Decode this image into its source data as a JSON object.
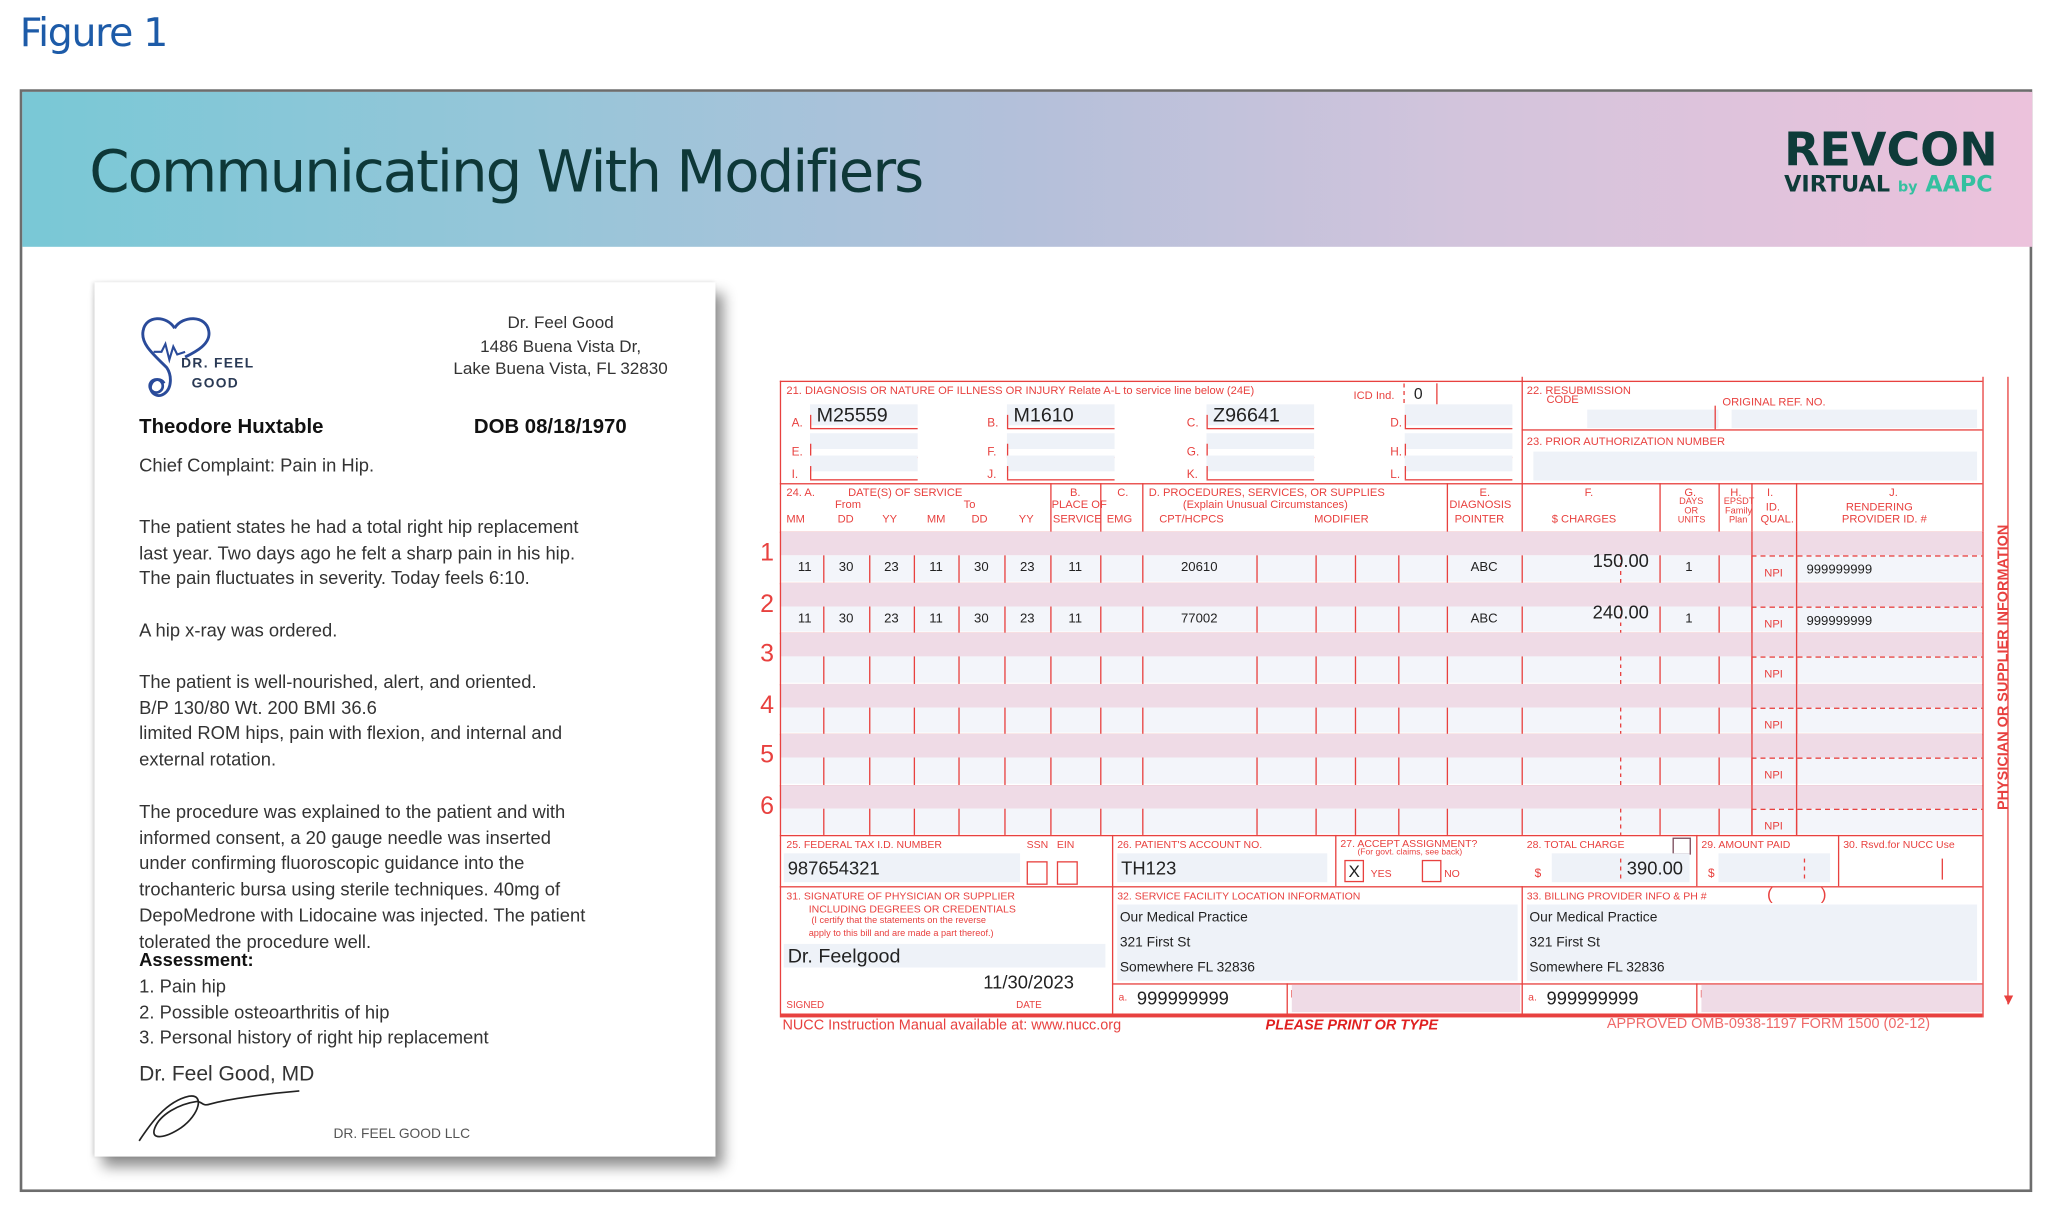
{
  "figure_label": "Figure 1",
  "banner": {
    "title": "Communicating With Modifiers",
    "logo": {
      "line1": "REVCON",
      "line2": "VIRTUAL",
      "by": "by",
      "brand": "AAPC"
    },
    "colors": {
      "left": "#79c8d6",
      "right": "#ecc2dc",
      "title": "#0e3838"
    }
  },
  "note": {
    "logo_text": [
      "DR. FEEL",
      "GOOD"
    ],
    "address": [
      "Dr. Feel Good",
      "1486 Buena Vista Dr,",
      "Lake Buena Vista, FL 32830"
    ],
    "patient_name": "Theodore Huxtable",
    "dob": "DOB  08/18/1970",
    "chief_complaint": "Chief Complaint:  Pain in Hip.",
    "para1": [
      "The patient states he had a total right hip replacement",
      "last year.  Two days ago he felt a sharp pain in his hip.",
      "The pain fluctuates in severity. Today feels 6:10."
    ],
    "para2": [
      "A hip x-ray was ordered."
    ],
    "para3": [
      "The patient is well-nourished, alert, and oriented.",
      "B/P 130/80 Wt. 200 BMI 36.6",
      "limited ROM  hips,  pain with flexion, and internal and",
      "external rotation."
    ],
    "para4": [
      "The procedure was explained to the patient and with",
      "informed consent, a 20 gauge needle was inserted",
      "under confirming fluoroscopic guidance into the",
      "trochanteric bursa using sterile techniques. 40mg of",
      "DepoMedrone with Lidocaine was injected.  The patient",
      "tolerated the procedure well."
    ],
    "assessment_heading": "Assessment:",
    "assessment": [
      "1. Pain hip",
      "2. Possible osteoarthritis of hip",
      "3. Personal history of right hip replacement"
    ],
    "signer": "Dr. Feel Good, MD",
    "footer": "DR. FEEL GOOD LLC"
  },
  "claim_form": {
    "color": "#e8413f",
    "box21": {
      "label": "21. DIAGNOSIS OR NATURE OF ILLNESS OR INJURY  Relate A-L to service line below (24E)",
      "icd_ind_label": "ICD Ind.",
      "icd_ind": "0",
      "letters": [
        "A.",
        "B.",
        "C.",
        "D.",
        "E.",
        "F.",
        "G.",
        "H.",
        "I.",
        "J.",
        "K.",
        "L."
      ],
      "codes": [
        "M25559",
        "M1610",
        "Z96641",
        "",
        "",
        "",
        "",
        "",
        "",
        "",
        "",
        ""
      ]
    },
    "box22": {
      "label": "22. RESUBMISSION",
      "label2": "CODE",
      "ref_label": "ORIGINAL REF. NO."
    },
    "box23": {
      "label": "23. PRIOR AUTHORIZATION NUMBER"
    },
    "box24_headers": {
      "a": "24.  A.",
      "dates": "DATE(S) OF SERVICE",
      "from": "From",
      "to": "To",
      "mm": "MM",
      "dd": "DD",
      "yy": "YY",
      "b": "B.",
      "b2": "PLACE OF",
      "b3": "SERVICE",
      "c": "C.",
      "c2": "EMG",
      "d": "D.  PROCEDURES, SERVICES, OR SUPPLIES",
      "d2": "(Explain Unusual Circumstances)",
      "d3": "CPT/HCPCS",
      "d4": "MODIFIER",
      "e": "E.",
      "e2": "DIAGNOSIS",
      "e3": "POINTER",
      "f": "F.",
      "f2": "$ CHARGES",
      "g": "G.",
      "g2": "DAYS",
      "g3": "OR",
      "g4": "UNITS",
      "h": "H.",
      "h2": "EPSDT",
      "h3": "Family",
      "h4": "Plan",
      "i": "I.",
      "i2": "ID.",
      "i3": "QUAL.",
      "j": "J.",
      "j2": "RENDERING",
      "j3": "PROVIDER ID. #"
    },
    "service_lines": [
      {
        "num": "1",
        "from_mm": "11",
        "from_dd": "30",
        "from_yy": "23",
        "to_mm": "11",
        "to_dd": "30",
        "to_yy": "23",
        "pos": "11",
        "emg": "",
        "cpt": "20610",
        "modifiers": [
          "",
          "",
          "",
          ""
        ],
        "pointer": "ABC",
        "charges": "150.00",
        "units": "1",
        "epsdt": "",
        "qual": "NPI",
        "provider_id": "999999999"
      },
      {
        "num": "2",
        "from_mm": "11",
        "from_dd": "30",
        "from_yy": "23",
        "to_mm": "11",
        "to_dd": "30",
        "to_yy": "23",
        "pos": "11",
        "emg": "",
        "cpt": "77002",
        "modifiers": [
          "",
          "",
          "",
          ""
        ],
        "pointer": "ABC",
        "charges": "240.00",
        "units": "1",
        "epsdt": "",
        "qual": "NPI",
        "provider_id": "999999999"
      },
      {
        "num": "3",
        "qual": "NPI"
      },
      {
        "num": "4",
        "qual": "NPI"
      },
      {
        "num": "5",
        "qual": "NPI"
      },
      {
        "num": "6",
        "qual": "NPI"
      }
    ],
    "side_label": "PHYSICIAN OR SUPPLIER INFORMATION",
    "box25": {
      "label": "25. FEDERAL TAX I.D. NUMBER",
      "ssn": "SSN",
      "ein": "EIN",
      "value": "987654321"
    },
    "box26": {
      "label": "26. PATIENT'S ACCOUNT NO.",
      "value": "TH123"
    },
    "box27": {
      "label": "27. ACCEPT ASSIGNMENT?",
      "sub": "(For govt. claims, see back)",
      "yes": "YES",
      "no": "NO",
      "yes_mark": "X"
    },
    "box28": {
      "label": "28. TOTAL CHARGE",
      "currency": "$",
      "value": "390.00"
    },
    "box29": {
      "label": "29. AMOUNT PAID",
      "currency": "$"
    },
    "box30": {
      "label": "30. Rsvd.for NUCC Use"
    },
    "box31": {
      "label": [
        "31. SIGNATURE OF PHYSICIAN OR SUPPLIER",
        "INCLUDING DEGREES OR CREDENTIALS",
        "(I certify that the statements on the reverse",
        "apply to this bill and are made a part thereof.)"
      ],
      "signature": "Dr. Feelgood",
      "date": "11/30/2023",
      "signed_label": "SIGNED",
      "date_label": "DATE"
    },
    "box32": {
      "label": "32. SERVICE FACILITY LOCATION INFORMATION",
      "lines": [
        "Our Medical Practice",
        "321 First St",
        "Somewhere FL 32836"
      ],
      "a_label": "a.",
      "a_value": "999999999",
      "b_label": "b."
    },
    "box33": {
      "label": "33. BILLING PROVIDER INFO & PH #",
      "phone_open": "(",
      "phone_close": ")",
      "lines": [
        "Our Medical Practice",
        "321 First St",
        "Somewhere FL 32836"
      ],
      "a_label": "a.",
      "a_value": "999999999",
      "b_label": "b."
    },
    "footer": {
      "left": "NUCC Instruction Manual available at: www.nucc.org",
      "center": "PLEASE PRINT OR TYPE",
      "right": "APPROVED OMB-0938-1197 FORM 1500 (02-12)"
    }
  }
}
